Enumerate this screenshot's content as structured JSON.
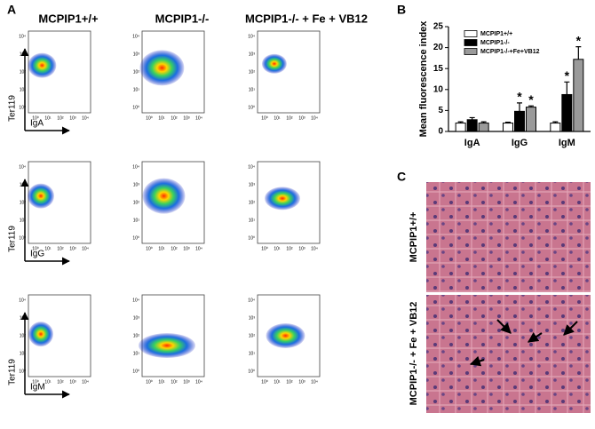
{
  "panel_labels": [
    "A",
    "B",
    "C"
  ],
  "flow": {
    "columns": [
      "MCPIP1+/+",
      "MCPIP1-/-",
      "MCPIP1-/- + Fe + VB12"
    ],
    "y_label": "Ter119",
    "x_labels": [
      "IgA",
      "IgG",
      "IgM"
    ],
    "tick_labels": [
      "10⁰",
      "10¹",
      "10²",
      "10³",
      "10⁴"
    ]
  },
  "histology": {
    "rows": [
      "MCPIP1+/+",
      "MCPIP1-/- + Fe + VB12"
    ]
  },
  "chart_data": {
    "type": "bar",
    "y_label": "Mean fluorescence index",
    "categories": [
      "IgA",
      "IgG",
      "IgM"
    ],
    "series": [
      {
        "name": "MCPIP1+/+",
        "color": "#ffffff",
        "values": [
          2,
          2,
          2
        ],
        "errors": [
          0.3,
          0.2,
          0.3
        ]
      },
      {
        "name": "MCPIP1-/-",
        "color": "#000000",
        "values": [
          2.8,
          4.8,
          8.8
        ],
        "errors": [
          0.5,
          2,
          3
        ],
        "annotations": [
          null,
          "*",
          "*"
        ]
      },
      {
        "name": "MCPIP1-/-+Fe+VB12",
        "color": "#9a9a9a",
        "values": [
          2,
          5.8,
          17.2
        ],
        "errors": [
          0.3,
          0.3,
          3
        ],
        "annotations": [
          null,
          "*",
          "*"
        ]
      }
    ],
    "ylim": [
      0,
      25
    ],
    "yticks": [
      0,
      5,
      10,
      15,
      20,
      25
    ],
    "legend": "upper left"
  }
}
